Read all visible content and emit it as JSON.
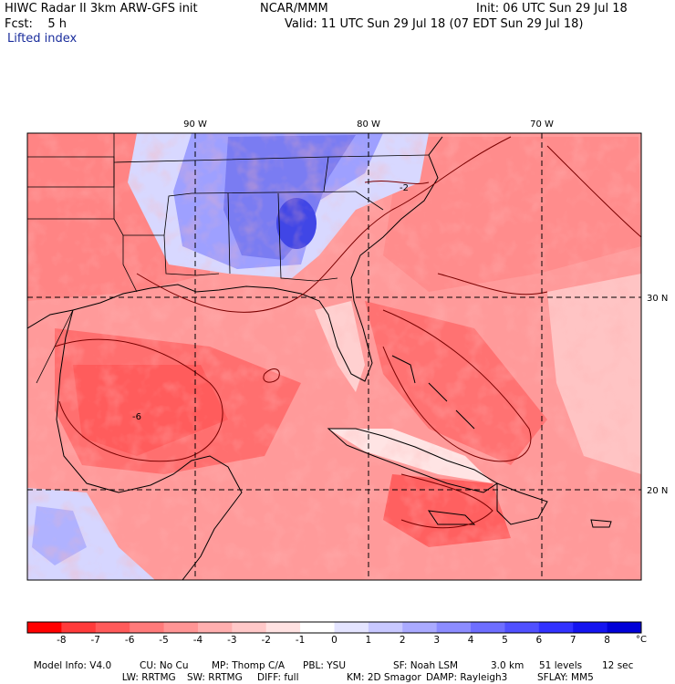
{
  "header": {
    "title": "HIWC Radar II 3km ARW-GFS init",
    "org": "NCAR/MMM",
    "init": "Init: 06 UTC Sun 29 Jul 18",
    "fcst_label": "Fcst:",
    "fcst_value": "5 h",
    "valid": "Valid: 11 UTC Sun 29 Jul 18 (07 EDT Sun 29 Jul 18)",
    "field": "Lifted index"
  },
  "map": {
    "lon_labels": [
      "90 W",
      "80 W",
      "70 W"
    ],
    "lat_labels": [
      "30 N",
      "20 N"
    ],
    "contour_labels": [
      "-2",
      "-6"
    ]
  },
  "colorbar": {
    "unit": "°C",
    "ticks": [
      "-8",
      "-7",
      "-6",
      "-5",
      "-4",
      "-3",
      "-2",
      "-1",
      "0",
      "1",
      "2",
      "3",
      "4",
      "5",
      "6",
      "7",
      "8"
    ],
    "colors": [
      "#ff0000",
      "#ff3a3a",
      "#ff5a5a",
      "#ff7a7a",
      "#ff9595",
      "#ffafaf",
      "#ffc8c8",
      "#ffe2e2",
      "#ffffff",
      "#e4e4ff",
      "#c8c8ff",
      "#aaaaff",
      "#8c8cff",
      "#6e6eff",
      "#5050ff",
      "#3232ff",
      "#1414f0",
      "#0000d8"
    ]
  },
  "model_info": {
    "line1": [
      "Model Info: V4.0",
      "CU: No Cu",
      "MP: Thomp C/A",
      "PBL: YSU",
      "SF: Noah LSM",
      "3.0 km",
      "51 levels",
      "12 sec"
    ],
    "line2": [
      "LW: RRTMG",
      "SW: RRTMG",
      "DIFF: full",
      "KM: 2D Smagor",
      "DAMP: Rayleigh3",
      "SFLAY: MM5"
    ]
  }
}
